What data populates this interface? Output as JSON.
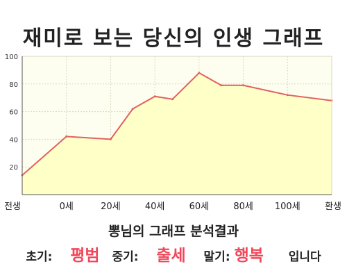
{
  "chart_data": {
    "type": "area",
    "title": "재미로 보는 당신의 인생 그래프",
    "xlabel": "",
    "ylabel": "",
    "x_categories": [
      "전생",
      "0세",
      "20세",
      "40세",
      "60세",
      "80세",
      "100세",
      "환생"
    ],
    "y_ticks": [
      20,
      40,
      60,
      80,
      100
    ],
    "ylim": [
      0,
      100
    ],
    "grid": true,
    "series": [
      {
        "x": [
          0,
          1,
          2,
          2.5,
          3,
          3.4,
          4,
          4.5,
          5,
          6,
          7
        ],
        "values": [
          14,
          42,
          40,
          62,
          71,
          69,
          88,
          79,
          79,
          72,
          68
        ]
      }
    ],
    "colors": {
      "fill": "#ffffc8",
      "line": "#e26060",
      "plot_bg": "#fefef0",
      "grid": "#d8d8c0",
      "axis": "#555555"
    }
  },
  "summary": "뽕님의 그래프 분석결과",
  "results": {
    "early_label": "초기:",
    "early_value": "평범",
    "middle_label": "중기:",
    "middle_value": "출세",
    "late_label": "말기:",
    "late_value": "행복",
    "ending": "입니다"
  }
}
